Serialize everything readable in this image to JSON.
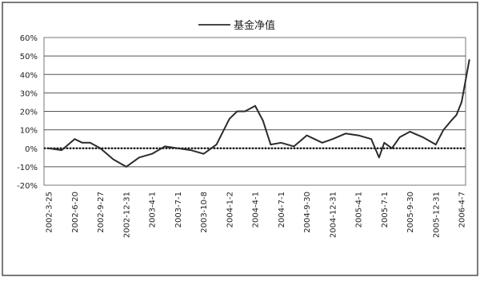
{
  "chart_data": {
    "type": "line",
    "title": "",
    "legend": {
      "label": "基金净值",
      "position": "top"
    },
    "y_axis": {
      "min": -20,
      "max": 60,
      "step": 10,
      "grid": true,
      "tick_labels": [
        "60%",
        "50%",
        "40%",
        "30%",
        "20%",
        "10%",
        "0%",
        "-10%",
        "-20%"
      ]
    },
    "x_axis": {
      "tick_labels": [
        "2002-3-25",
        "2002-6-20",
        "2002-9-27",
        "2002-12-31",
        "2003-4-1",
        "2003-7-1",
        "2003-10-8",
        "2004-1-2",
        "2004-4-1",
        "2004-7-1",
        "2004-9-30",
        "2004-12-31",
        "2005-4-1",
        "2005-7-1",
        "2005-9-30",
        "2005-12-31",
        "2006-4-7"
      ]
    },
    "reference_line": {
      "value": 0,
      "style": "dotted"
    },
    "series": [
      {
        "name": "基金净值",
        "color": "#2b2b2b",
        "x": [
          0,
          0.5,
          1,
          1.3,
          1.6,
          2,
          2.5,
          3,
          3.5,
          4,
          4.5,
          5,
          5.5,
          6,
          6.5,
          7,
          7.3,
          7.6,
          8,
          8.3,
          8.6,
          9,
          9.5,
          10,
          10.3,
          10.6,
          11,
          11.5,
          12,
          12.5,
          12.8,
          13,
          13.3,
          13.6,
          14,
          14.5,
          15,
          15.3,
          15.6,
          15.8,
          16,
          16.3
        ],
        "y": [
          0,
          -1,
          5,
          3,
          3,
          0,
          -6,
          -10,
          -5,
          -3,
          1,
          0,
          -1,
          -3,
          2,
          16,
          20,
          20,
          23,
          15,
          2,
          3,
          1,
          7,
          5,
          3,
          5,
          8,
          7,
          5,
          -5,
          3,
          0,
          6,
          9,
          6,
          2,
          10,
          15,
          18,
          25,
          48
        ]
      }
    ]
  }
}
